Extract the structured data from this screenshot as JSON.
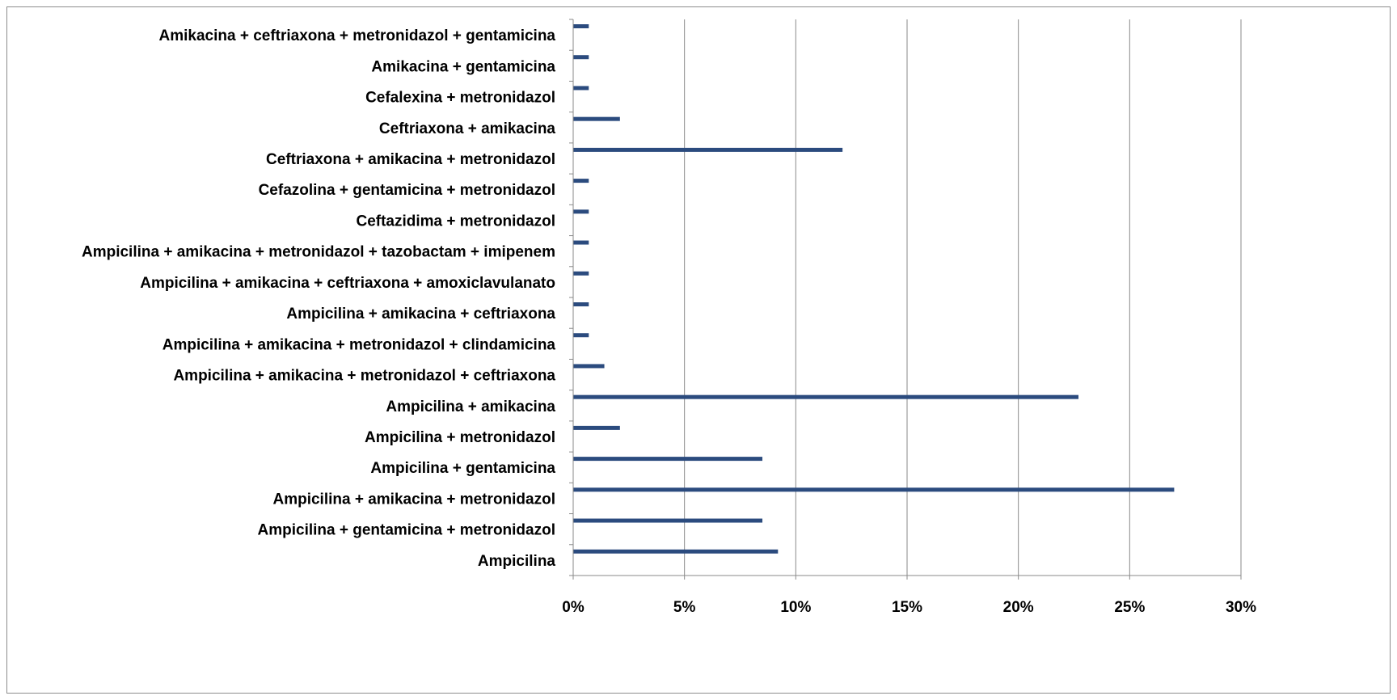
{
  "chart_data": {
    "type": "bar",
    "orientation": "horizontal",
    "title": "",
    "xlabel": "",
    "ylabel": "",
    "xlim": [
      0,
      0.3
    ],
    "x_ticks": [
      {
        "value": 0,
        "label": "0%"
      },
      {
        "value": 0.05,
        "label": "5%"
      },
      {
        "value": 0.1,
        "label": "10%"
      },
      {
        "value": 0.15,
        "label": "15%"
      },
      {
        "value": 0.2,
        "label": "20%"
      },
      {
        "value": 0.25,
        "label": "25%"
      },
      {
        "value": 0.3,
        "label": "30%"
      }
    ],
    "grid": "vertical major gridlines",
    "legend": "none",
    "bar_color": "#2b4b7e",
    "categories": [
      "Ampicilina",
      "Ampicilina + gentamicina + metronidazol",
      "Ampicilina + amikacina + metronidazol",
      "Ampicilina + gentamicina",
      "Ampicilina + metronidazol",
      "Ampicilina + amikacina",
      "Ampicilina + amikacina + metronidazol + ceftriaxona",
      "Ampicilina + amikacina + metronidazol + clindamicina",
      "Ampicilina + amikacina + ceftriaxona",
      "Ampicilina + amikacina + ceftriaxona + amoxiclavulanato",
      "Ampicilina + amikacina + metronidazol + tazobactam + imipenem",
      "Ceftazidima + metronidazol",
      "Cefazolina + gentamicina + metronidazol",
      "Ceftriaxona + amikacina + metronidazol",
      "Ceftriaxona + amikacina",
      "Cefalexina + metronidazol",
      "Amikacina + gentamicina",
      "Amikacina + ceftriaxona + metronidazol + gentamicina"
    ],
    "values": [
      0.092,
      0.085,
      0.27,
      0.085,
      0.021,
      0.227,
      0.014,
      0.007,
      0.007,
      0.007,
      0.007,
      0.007,
      0.007,
      0.121,
      0.021,
      0.007,
      0.007,
      0.007
    ]
  }
}
